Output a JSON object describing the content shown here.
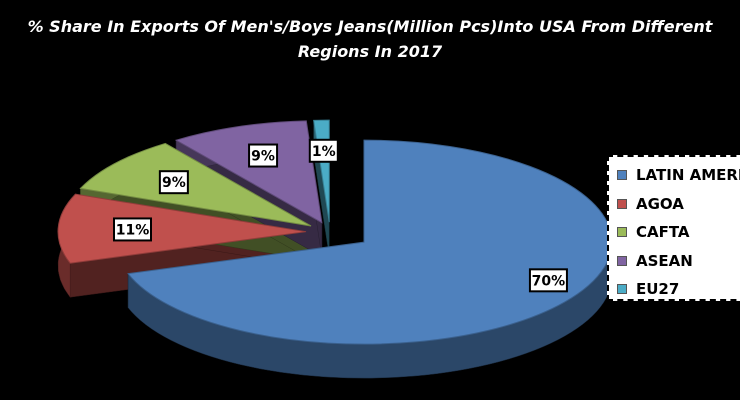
{
  "chart_data": {
    "type": "pie",
    "title_lines": [
      "% Share In Exports Of Men's/Boys Jeans(Million Pcs)Into USA From Different",
      "Regions In 2017"
    ],
    "categories": [
      "LATIN AMERICA",
      "AGOA",
      "CAFTA",
      "ASEAN",
      "EU27"
    ],
    "values": [
      70,
      11,
      9,
      9,
      1
    ],
    "data_labels": [
      "70%",
      "11%",
      "9%",
      "9%",
      "1%"
    ],
    "colors": [
      "#4f81bd",
      "#c0504d",
      "#9bbb59",
      "#8064a2",
      "#4bacc6"
    ],
    "exploded": true,
    "three_d": true,
    "legend_position": "right"
  }
}
